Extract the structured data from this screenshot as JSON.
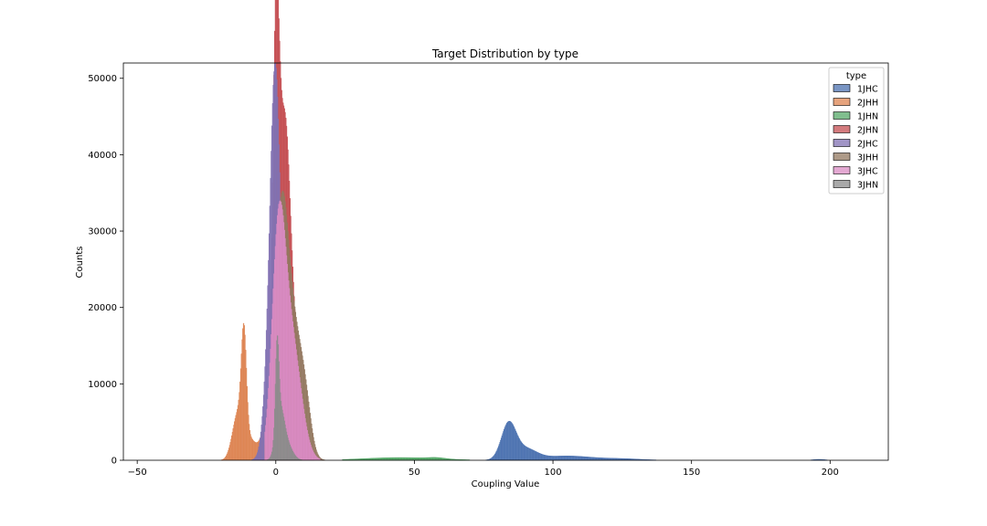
{
  "chart_data": {
    "type": "histogram",
    "title": "Target Distribution by type",
    "xlabel": "Coupling Value",
    "ylabel": "Counts",
    "xlim": [
      -55,
      221
    ],
    "ylim": [
      0,
      52000
    ],
    "xticks": [
      -50,
      0,
      50,
      100,
      150,
      200
    ],
    "yticks": [
      0,
      10000,
      20000,
      30000,
      40000,
      50000
    ],
    "legend": {
      "title": "type",
      "placement": "top-right"
    },
    "series": [
      {
        "name": "1JHC",
        "color": "#4c72b0",
        "peaks": [
          {
            "center": 84,
            "height": 4600,
            "width": 2.6
          },
          {
            "center": 90,
            "height": 1400,
            "width": 4
          },
          {
            "center": 105,
            "height": 560,
            "width": 9
          },
          {
            "center": 125,
            "height": 180,
            "width": 7
          },
          {
            "center": 196,
            "height": 120,
            "width": 2
          }
        ],
        "range": [
          66,
          209
        ]
      },
      {
        "name": "2JHH",
        "color": "#dd8452",
        "peaks": [
          {
            "center": -11.5,
            "height": 13500,
            "width": 0.9
          },
          {
            "center": -13.5,
            "height": 4500,
            "width": 1.5
          },
          {
            "center": -10,
            "height": 3000,
            "width": 2.5
          },
          {
            "center": -15.5,
            "height": 1800,
            "width": 1.5
          },
          {
            "center": -4,
            "height": 2500,
            "width": 2
          },
          {
            "center": -2,
            "height": 5500,
            "width": 1.6
          },
          {
            "center": 0,
            "height": 2000,
            "width": 2
          }
        ],
        "range": [
          -45,
          12
        ]
      },
      {
        "name": "1JHN",
        "color": "#55a868",
        "peaks": [
          {
            "center": 45,
            "height": 350,
            "width": 13
          },
          {
            "center": 58,
            "height": 150,
            "width": 3
          }
        ],
        "range": [
          24,
          70
        ]
      },
      {
        "name": "2JHN",
        "color": "#c44e52",
        "peaks": [
          {
            "center": 0,
            "height": 48500,
            "width": 1.2
          },
          {
            "center": 3,
            "height": 35000,
            "width": 2
          },
          {
            "center": 6,
            "height": 15000,
            "width": 3
          }
        ],
        "range": [
          -6,
          14
        ]
      },
      {
        "name": "2JHC",
        "color": "#8172b3",
        "peaks": [
          {
            "center": 0,
            "height": 40000,
            "width": 1.7
          },
          {
            "center": -2,
            "height": 14000,
            "width": 2
          },
          {
            "center": 4,
            "height": 8000,
            "width": 3
          }
        ],
        "range": [
          -20,
          20
        ]
      },
      {
        "name": "3JHH",
        "color": "#937860",
        "peaks": [
          {
            "center": 2,
            "height": 31000,
            "width": 2.5
          },
          {
            "center": 7,
            "height": 15000,
            "width": 3
          },
          {
            "center": 11,
            "height": 4000,
            "width": 2
          }
        ],
        "range": [
          -4,
          20
        ]
      },
      {
        "name": "3JHC",
        "color": "#da8bc3",
        "peaks": [
          {
            "center": 1,
            "height": 28000,
            "width": 2.4
          },
          {
            "center": 5,
            "height": 12000,
            "width": 3
          },
          {
            "center": 8,
            "height": 5000,
            "width": 3
          }
        ],
        "range": [
          -4,
          16
        ]
      },
      {
        "name": "3JHN",
        "color": "#8c8c8c",
        "peaks": [
          {
            "center": 0.5,
            "height": 11000,
            "width": 0.6
          },
          {
            "center": 1.5,
            "height": 6000,
            "width": 1.5
          },
          {
            "center": 4,
            "height": 2000,
            "width": 2
          }
        ],
        "range": [
          -4,
          10
        ]
      }
    ],
    "grid": false
  }
}
